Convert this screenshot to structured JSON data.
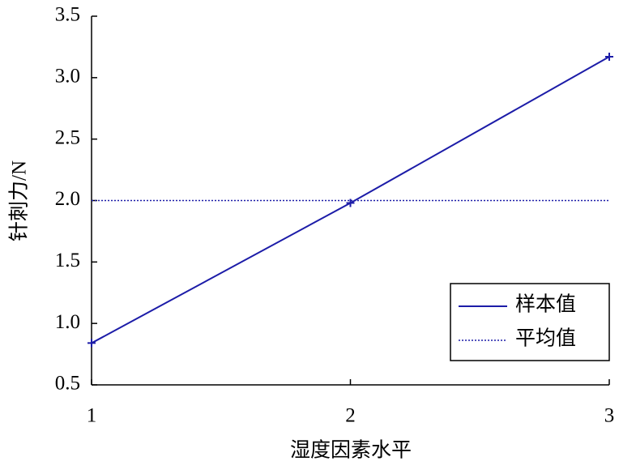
{
  "chart_data": {
    "type": "line",
    "x_label": "湿度因素水平",
    "y_label": "针刺力/N",
    "x": [
      1,
      2,
      3
    ],
    "series": [
      {
        "name": "样本值",
        "color": "#1c1ca8",
        "style": "solid",
        "marker": "+",
        "values": [
          0.84,
          1.98,
          3.17
        ]
      },
      {
        "name": "平均值",
        "color": "#1c1ca8",
        "style": "dotted",
        "values": [
          2.0,
          2.0,
          2.0
        ]
      }
    ],
    "xlim": [
      1,
      3
    ],
    "xticks": [
      1,
      2,
      3
    ],
    "ylim": [
      0.5,
      3.5
    ],
    "yticks": [
      0.5,
      {
        "value": 1,
        "label": "1.0"
      },
      1.5,
      {
        "value": 2,
        "label": "2.0"
      },
      2.5,
      {
        "value": 3,
        "label": "3.0"
      },
      3.5
    ],
    "legend": "lower right"
  }
}
